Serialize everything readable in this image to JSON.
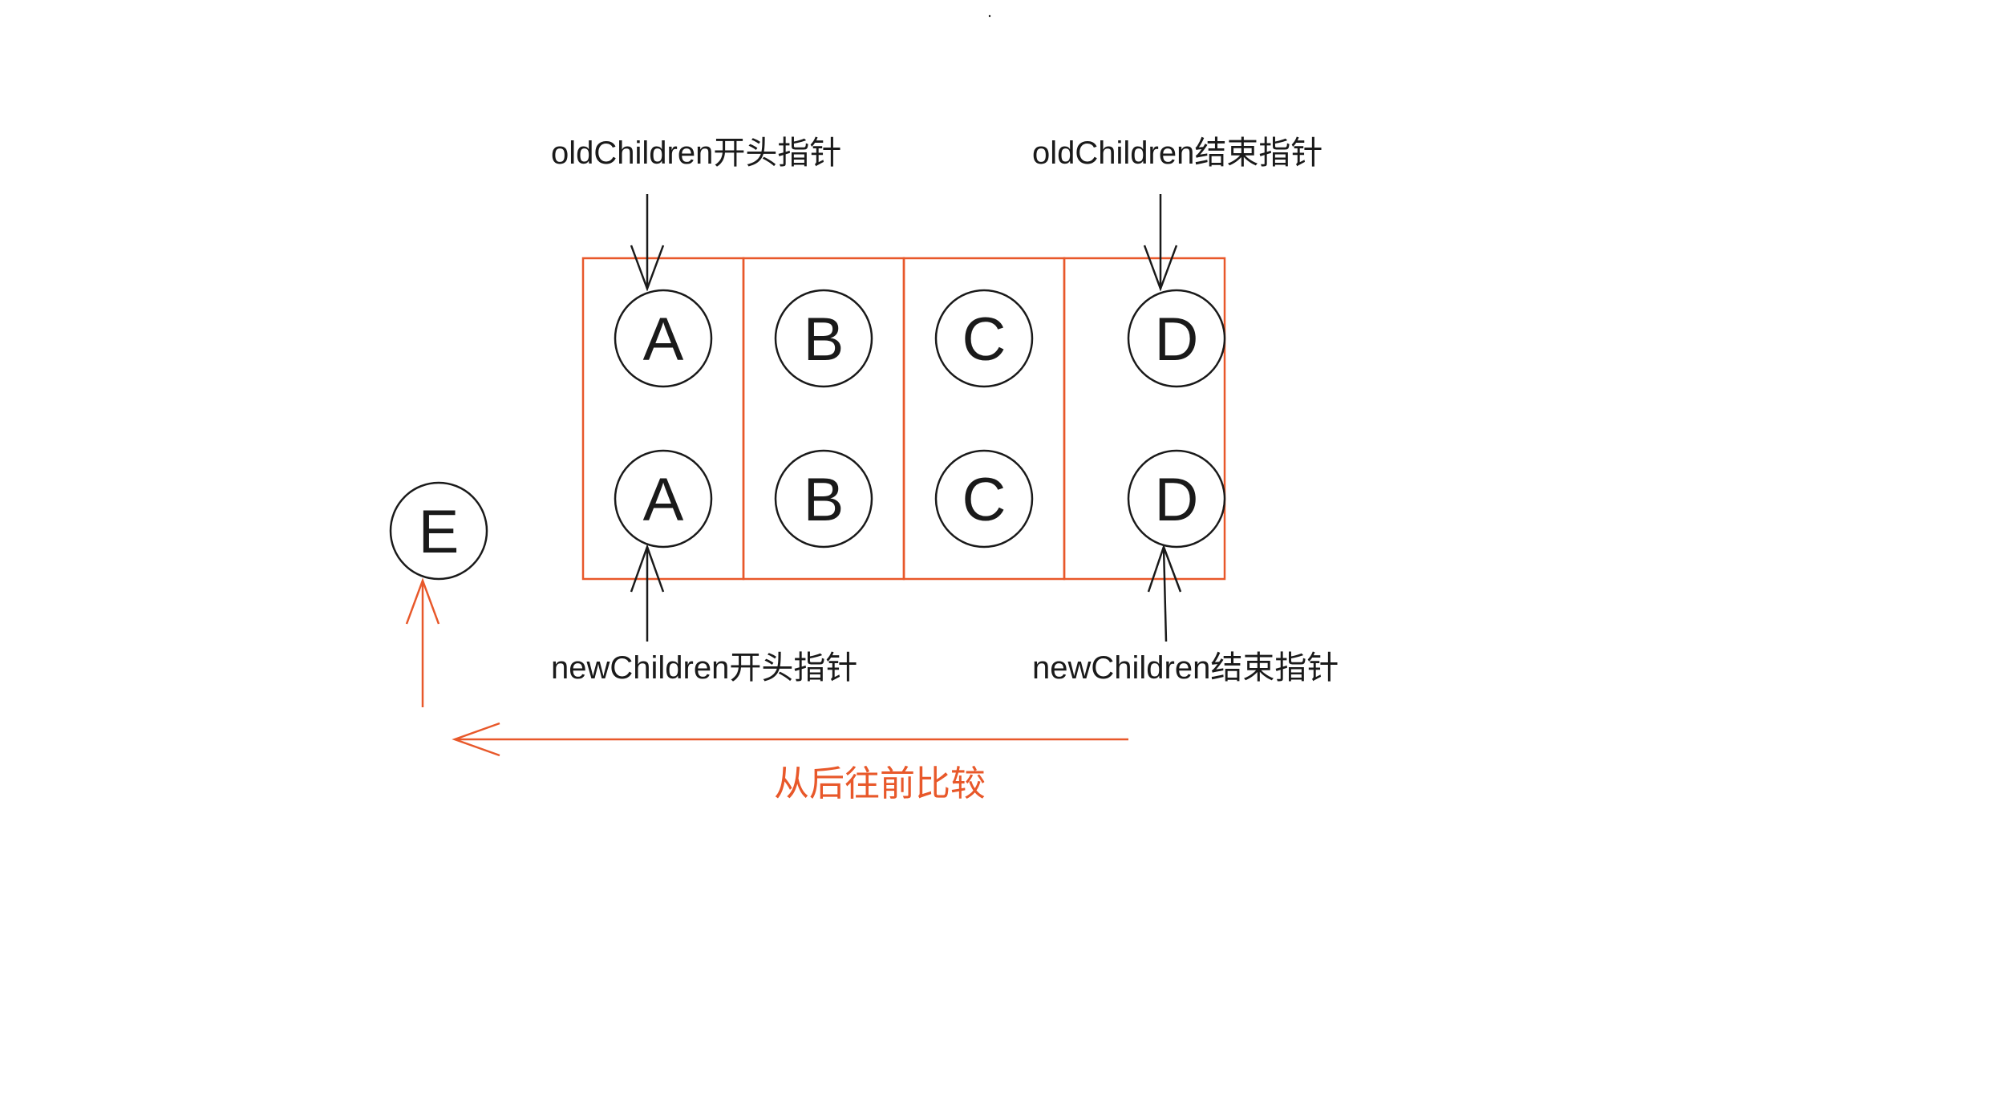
{
  "colors": {
    "accent": "#e8582a",
    "ink": "#1a1a1a"
  },
  "labels": {
    "old_start": "oldChildren开头指针",
    "old_end": "oldChildren结束指针",
    "new_start": "newChildren开头指针",
    "new_end": "newChildren结束指针",
    "direction": "从后往前比较"
  },
  "old_nodes": [
    "A",
    "B",
    "C",
    "D"
  ],
  "new_nodes": [
    "A",
    "B",
    "C",
    "D"
  ],
  "extra_node": "E"
}
